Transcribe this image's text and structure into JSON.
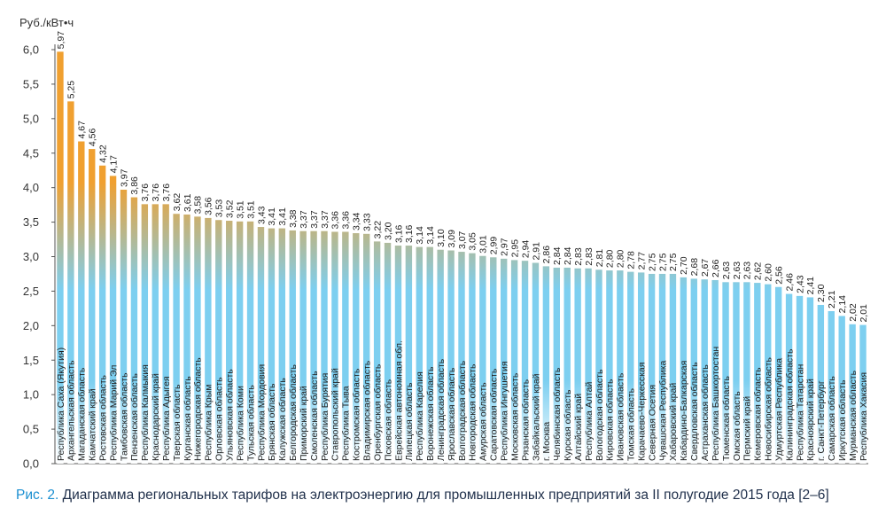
{
  "caption": {
    "figure_label": "Рис. 2.",
    "text": "Диаграмма региональных тарифов на электроэнергию для промышленных предприятий за II полугодие 2015 года [2–6]"
  },
  "colors": {
    "bar_top": "#f0a030",
    "bar_bottom": "#7dcff0"
  },
  "chart_data": {
    "type": "bar",
    "ylabel": "Руб./кВт•ч",
    "ylim": [
      0,
      6
    ],
    "yticks": [
      "0,0",
      "0,5",
      "1,0",
      "1,5",
      "2,0",
      "2,5",
      "3,0",
      "3,5",
      "4,0",
      "4,5",
      "5,0",
      "5,5",
      "6,0"
    ],
    "grid": false,
    "categories": [
      "Республика Саха (Якутия)",
      "Архангельская область",
      "Магаданская область",
      "Камчатский край",
      "Ростовская область",
      "Республика Марий Эл",
      "Тамбовская область",
      "Пензенская область",
      "Республика Калмыкия",
      "Краснодарский край",
      "Республика Адыгея",
      "Тверская область",
      "Курганская область",
      "Нижегородская область",
      "Республика Крым",
      "Орловская область",
      "Ульяновская область",
      "Республика Коми",
      "Тульская область",
      "Республика Мордовия",
      "Брянская область",
      "Калужская область",
      "Белгородская область",
      "Приморский край",
      "Смоленская область",
      "Республика Бурятия",
      "Ставропольский край",
      "Республика Тыва",
      "Костромская область",
      "Владимирская область",
      "Оренбургская область",
      "Псковская область",
      "Еврейская автономная обл.",
      "Липецкая область",
      "Республика Карелия",
      "Воронежская область",
      "Ленинградская область",
      "Ярославская область",
      "Волгоградская область",
      "Новгородская область",
      "Амурская область",
      "Саратовская область",
      "Республика Ингушетия",
      "Московская область",
      "Рязанская область",
      "Забайкальский край",
      "г. Москва",
      "Челябинская область",
      "Курская область",
      "Алтайский край",
      "Республика Алтай",
      "Вологодская область",
      "Кировская область",
      "Ивановская область",
      "Томская область",
      "Карачаево-Черкесская",
      "Северная Осетия",
      "Чувашская Республика",
      "Хабаровский край",
      "Кабардино-Балкарская",
      "Свердловская область",
      "Астраханская область",
      "Республика Башкортостан",
      "Тюменская область",
      "Омская область",
      "Пермский край",
      "Кемеровская область",
      "Новосибирская область",
      "Удмуртская Республика",
      "Калининградская область",
      "Республика Татарстан",
      "Красноярский край",
      "г. Санкт-Петербург",
      "Самарская область",
      "Иркутская область",
      "Мурманская область",
      "Республика Хакасия"
    ],
    "values": [
      5.97,
      5.25,
      4.67,
      4.56,
      4.32,
      4.17,
      3.97,
      3.86,
      3.76,
      3.76,
      3.76,
      3.62,
      3.61,
      3.58,
      3.56,
      3.53,
      3.52,
      3.51,
      3.51,
      3.43,
      3.41,
      3.41,
      3.38,
      3.37,
      3.37,
      3.37,
      3.36,
      3.36,
      3.34,
      3.33,
      3.22,
      3.2,
      3.16,
      3.16,
      3.14,
      3.14,
      3.1,
      3.09,
      3.07,
      3.05,
      3.01,
      2.99,
      2.97,
      2.95,
      2.94,
      2.91,
      2.86,
      2.84,
      2.84,
      2.83,
      2.83,
      2.81,
      2.8,
      2.8,
      2.78,
      2.77,
      2.75,
      2.75,
      2.75,
      2.7,
      2.68,
      2.67,
      2.66,
      2.63,
      2.63,
      2.63,
      2.62,
      2.6,
      2.56,
      2.46,
      2.43,
      2.41,
      2.3,
      2.21,
      2.14,
      2.02,
      2.01
    ],
    "value_labels": [
      "5,97",
      "5,25",
      "4,67",
      "4,56",
      "4,32",
      "4,17",
      "3,97",
      "3,86",
      "3,76",
      "3,76",
      "3,76",
      "3,62",
      "3,61",
      "3,58",
      "3,56",
      "3,53",
      "3,52",
      "3,51",
      "3,51",
      "3,43",
      "3,41",
      "3,41",
      "3,38",
      "3,37",
      "3,37",
      "3,37",
      "3,36",
      "3,36",
      "3,34",
      "3,33",
      "3,22",
      "3,20",
      "3,16",
      "3,16",
      "3,14",
      "3,14",
      "3,10",
      "3,09",
      "3,07",
      "3,05",
      "3,01",
      "2,99",
      "2,97",
      "2,95",
      "2,94",
      "2,91",
      "2,86",
      "2,84",
      "2,84",
      "2,83",
      "2,83",
      "2,81",
      "2,80",
      "2,80",
      "2,78",
      "2,77",
      "2,75",
      "2,75",
      "2,75",
      "2,70",
      "2,68",
      "2,67",
      "2,66",
      "2,63",
      "2,63",
      "2,63",
      "2,62",
      "2,60",
      "2,56",
      "2,46",
      "2,43",
      "2,41",
      "2,30",
      "2,21",
      "2,14",
      "2,02",
      "2,01"
    ]
  }
}
